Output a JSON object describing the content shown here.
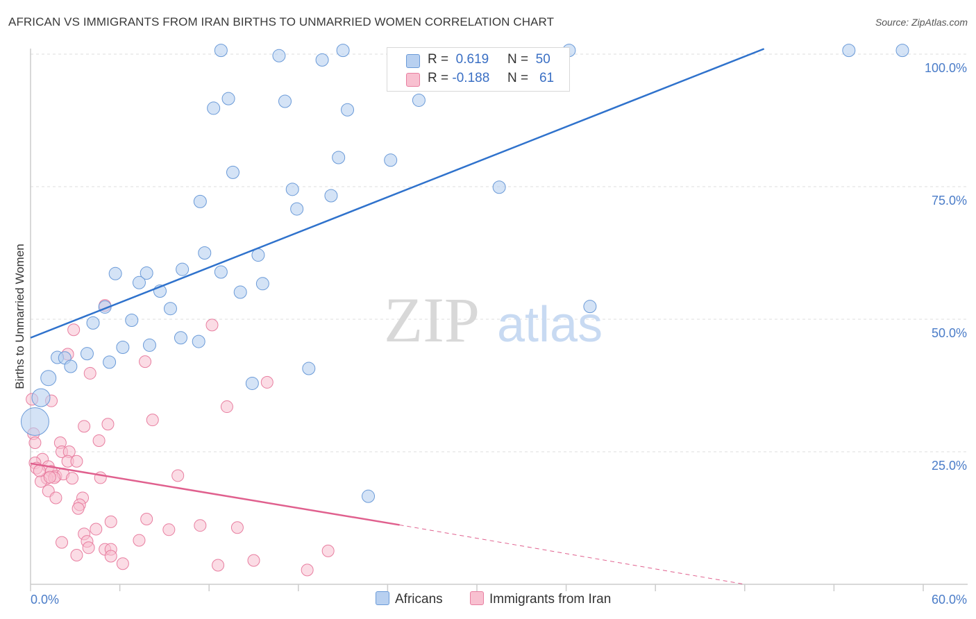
{
  "title": "AFRICAN VS IMMIGRANTS FROM IRAN BIRTHS TO UNMARRIED WOMEN CORRELATION CHART",
  "source": "Source: ZipAtlas.com",
  "watermark": {
    "zip": "ZIP",
    "atlas": "atlas"
  },
  "legend": {
    "africans": {
      "r_label": "R =",
      "r_value": "0.619",
      "n_label": "N =",
      "n_value": "50"
    },
    "iran": {
      "r_label": "R =",
      "r_value": "-0.188",
      "n_label": "N =",
      "n_value": "61"
    }
  },
  "bottom_legend": {
    "africans": "Africans",
    "iran": "Immigrants from Iran"
  },
  "colors": {
    "africans_fill": "#b8d0f0",
    "africans_stroke": "#6a9ad8",
    "africans_line": "#2f72cc",
    "iran_fill": "#f8c0d0",
    "iran_stroke": "#e87ea0",
    "iran_line": "#e0608e",
    "tick_text": "#4a7cc8",
    "grid": "#dddddd"
  },
  "chart_data": {
    "type": "scatter",
    "title": "AFRICAN VS IMMIGRANTS FROM IRAN BIRTHS TO UNMARRIED WOMEN CORRELATION CHART",
    "xlabel": "",
    "ylabel": "Births to Unmarried Women",
    "xlim": [
      0,
      60
    ],
    "ylim": [
      0,
      105
    ],
    "x_tick_labels": [
      "0.0%",
      "60.0%"
    ],
    "y_ticks": [
      25,
      50,
      75,
      100
    ],
    "y_tick_labels": [
      "25.0%",
      "50.0%",
      "75.0%",
      "100.0%"
    ],
    "grid": true,
    "legend_position": "top-center",
    "series": [
      {
        "name": "Africans",
        "points": [
          [
            12.8,
            100.7
          ],
          [
            16.7,
            99.7
          ],
          [
            19.6,
            98.9
          ],
          [
            21.0,
            100.7
          ],
          [
            36.2,
            100.7
          ],
          [
            55.0,
            100.7
          ],
          [
            58.6,
            100.7
          ],
          [
            12.3,
            89.8
          ],
          [
            13.3,
            91.6
          ],
          [
            17.1,
            91.1
          ],
          [
            21.3,
            89.5
          ],
          [
            26.1,
            91.3
          ],
          [
            20.7,
            80.5
          ],
          [
            24.2,
            80.0
          ],
          [
            13.6,
            77.7
          ],
          [
            17.6,
            74.5
          ],
          [
            20.2,
            73.3
          ],
          [
            31.5,
            74.9
          ],
          [
            11.4,
            72.2
          ],
          [
            17.9,
            70.8
          ],
          [
            11.7,
            62.5
          ],
          [
            15.3,
            62.1
          ],
          [
            5.7,
            58.6
          ],
          [
            7.8,
            58.7
          ],
          [
            10.2,
            59.4
          ],
          [
            12.8,
            58.9
          ],
          [
            7.3,
            56.9
          ],
          [
            8.7,
            55.3
          ],
          [
            14.1,
            55.1
          ],
          [
            15.6,
            56.7
          ],
          [
            5.0,
            52.3
          ],
          [
            9.4,
            52.0
          ],
          [
            4.2,
            49.3
          ],
          [
            6.8,
            49.8
          ],
          [
            37.6,
            52.4
          ],
          [
            10.1,
            46.5
          ],
          [
            11.3,
            45.8
          ],
          [
            8.0,
            45.1
          ],
          [
            6.2,
            44.7
          ],
          [
            1.8,
            42.8
          ],
          [
            2.3,
            42.7
          ],
          [
            3.8,
            43.5
          ],
          [
            2.7,
            41.1
          ],
          [
            5.3,
            41.9
          ],
          [
            18.7,
            40.7
          ],
          [
            1.2,
            38.9
          ],
          [
            14.9,
            37.9
          ],
          [
            0.7,
            35.2
          ],
          [
            0.3,
            30.7
          ],
          [
            22.7,
            16.6
          ]
        ],
        "sizes": "most ~9px radius; larger marks at [1.2,38.9] and [0.7,35.2], largest at [0.3,30.7]"
      },
      {
        "name": "Immigrants from Iran",
        "points": [
          [
            5.0,
            52.6
          ],
          [
            2.9,
            48.0
          ],
          [
            12.2,
            48.9
          ],
          [
            2.5,
            43.4
          ],
          [
            7.7,
            42.0
          ],
          [
            4.0,
            39.8
          ],
          [
            15.9,
            38.1
          ],
          [
            0.1,
            34.9
          ],
          [
            1.4,
            34.6
          ],
          [
            13.2,
            33.5
          ],
          [
            8.2,
            31.0
          ],
          [
            5.2,
            30.2
          ],
          [
            3.6,
            29.8
          ],
          [
            0.2,
            28.4
          ],
          [
            0.3,
            26.7
          ],
          [
            2.0,
            26.7
          ],
          [
            4.6,
            27.1
          ],
          [
            2.1,
            25.0
          ],
          [
            2.6,
            25.0
          ],
          [
            0.8,
            23.6
          ],
          [
            2.5,
            23.2
          ],
          [
            3.1,
            23.2
          ],
          [
            0.3,
            22.9
          ],
          [
            0.4,
            21.9
          ],
          [
            1.2,
            22.2
          ],
          [
            1.4,
            21.3
          ],
          [
            1.7,
            20.4
          ],
          [
            1.1,
            20.0
          ],
          [
            2.2,
            20.8
          ],
          [
            1.6,
            20.1
          ],
          [
            2.8,
            20.0
          ],
          [
            4.7,
            20.1
          ],
          [
            9.9,
            20.5
          ],
          [
            0.7,
            19.4
          ],
          [
            1.2,
            17.6
          ],
          [
            1.7,
            16.3
          ],
          [
            3.5,
            16.3
          ],
          [
            3.3,
            15.0
          ],
          [
            3.2,
            14.3
          ],
          [
            5.4,
            11.8
          ],
          [
            7.8,
            12.3
          ],
          [
            11.4,
            11.1
          ],
          [
            13.9,
            10.7
          ],
          [
            4.4,
            10.4
          ],
          [
            9.3,
            10.3
          ],
          [
            3.6,
            9.5
          ],
          [
            2.1,
            7.9
          ],
          [
            3.8,
            8.1
          ],
          [
            7.3,
            8.3
          ],
          [
            3.9,
            6.9
          ],
          [
            5.0,
            6.6
          ],
          [
            5.4,
            6.6
          ],
          [
            20.0,
            6.3
          ],
          [
            3.1,
            5.5
          ],
          [
            5.4,
            5.3
          ],
          [
            15.0,
            4.5
          ],
          [
            6.2,
            3.9
          ],
          [
            12.6,
            3.6
          ],
          [
            18.6,
            2.7
          ],
          [
            1.3,
            20.2
          ],
          [
            0.6,
            21.4
          ]
        ]
      }
    ],
    "trend_lines": [
      {
        "series": "Africans",
        "x_start": 0,
        "y_start": 46.5,
        "x_end": 49.3,
        "y_end": 101.0,
        "style": "solid"
      },
      {
        "series": "Immigrants from Iran",
        "x_start": 0,
        "y_start": 22.8,
        "x_end": 24.8,
        "y_end": 11.2,
        "style": "solid"
      },
      {
        "series": "Immigrants from Iran",
        "x_start": 24.8,
        "y_start": 11.2,
        "x_end": 48.0,
        "y_end": 0.0,
        "style": "dashed"
      }
    ]
  }
}
